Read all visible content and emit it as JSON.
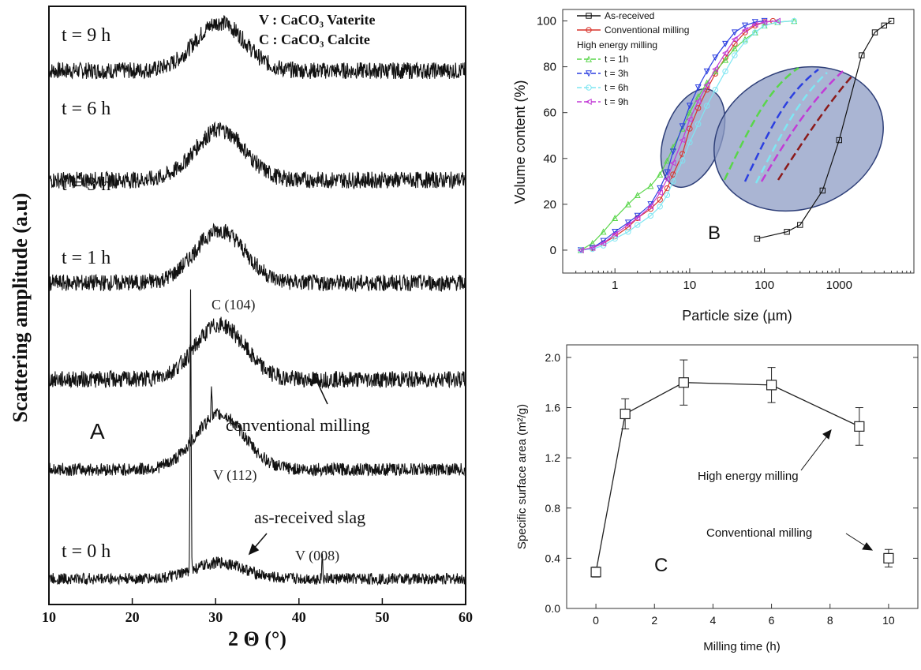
{
  "colors": {
    "xrd_trace": "#111111",
    "ellipse_fill": "#8e9cc4",
    "ellipse_stroke": "#2e3f78",
    "as_received": "#111111",
    "conventional": "#d9342b",
    "t1": "#59d64a",
    "t3": "#2b3fe0",
    "t6": "#7fe6f2",
    "t9": "#c23bd6",
    "panelC": "#222222"
  },
  "chart_data": [
    {
      "type": "line",
      "panel_label": "A",
      "xlabel": "2 Θ (°)",
      "ylabel": "Scattering amplitude (a.u)",
      "xlim": [
        10,
        60
      ],
      "x_ticks": [
        "10",
        "20",
        "30",
        "40",
        "50",
        "60"
      ],
      "y_ticks": [],
      "series": [
        {
          "name": "t = 9 h",
          "baseline": 7.9,
          "hump_center": 30.5,
          "hump_height": 0.75,
          "noise": 0.13,
          "peaks": []
        },
        {
          "name": "t = 6 h",
          "baseline": 6.2,
          "hump_center": 30.5,
          "hump_height": 0.78,
          "noise": 0.13,
          "peaks": []
        },
        {
          "name": "t = 3 h",
          "baseline": 4.6,
          "hump_center": 30.5,
          "hump_height": 0.82,
          "noise": 0.13,
          "peaks": []
        },
        {
          "name": "t = 1 h",
          "baseline": 3.1,
          "hump_center": 30.5,
          "hump_height": 0.85,
          "noise": 0.13,
          "peaks": []
        },
        {
          "name": "",
          "baseline": 1.7,
          "hump_center": 30.5,
          "hump_height": 0.85,
          "noise": 0.1,
          "peaks": [
            {
              "x": 29.5,
              "h": 0.5
            }
          ]
        },
        {
          "name": "t = 0 h",
          "baseline": 0.0,
          "hump_center": 30.5,
          "hump_height": 0.25,
          "noise": 0.09,
          "peaks": [
            {
              "x": 27.0,
              "h": 4.3
            },
            {
              "x": 42.8,
              "h": 0.35
            }
          ]
        }
      ],
      "ylim": [
        -0.4,
        8.9
      ],
      "annotations": {
        "legend_v": "V : CaCO₃ Vaterite",
        "legend_c": "C : CaCO₃ Calcite",
        "c104": "C (104)",
        "v112": "V (112)",
        "v008": "V (008)",
        "conventional": "conventional milling",
        "as_received": "as-received slag"
      }
    },
    {
      "type": "line",
      "panel_label": "B",
      "xlabel": "Particle size (µm)",
      "ylabel": "Volume content (%)",
      "x_scale": "log",
      "xlim": [
        0.2,
        10000
      ],
      "ylim": [
        -10,
        105
      ],
      "x_ticks": [
        "1",
        "10",
        "100",
        "1000"
      ],
      "y_ticks": [
        "0",
        "20",
        "40",
        "60",
        "80",
        "100"
      ],
      "legend_header": "High energy milling",
      "series": [
        {
          "name": "As-received",
          "color_key": "as_received",
          "marker": "square",
          "x": [
            80,
            200,
            300,
            600,
            1000,
            2000,
            3000,
            4000,
            5000
          ],
          "y": [
            5,
            8,
            11,
            26,
            48,
            85,
            95,
            98,
            100
          ]
        },
        {
          "name": "Conventional milling",
          "color_key": "conventional",
          "marker": "circle",
          "x": [
            0.35,
            0.5,
            0.7,
            1,
            1.5,
            2,
            3,
            4,
            5,
            6,
            8,
            10,
            13,
            17,
            22,
            30,
            40,
            55,
            75,
            100,
            130
          ],
          "y": [
            0,
            1,
            3,
            6,
            10,
            14,
            18,
            22,
            27,
            33,
            42,
            53,
            62,
            70,
            77,
            84,
            90,
            95,
            98,
            99.5,
            100
          ]
        },
        {
          "name": "t = 1h",
          "color_key": "t1",
          "marker": "triangle-up",
          "x": [
            0.35,
            0.5,
            0.7,
            1,
            1.5,
            2,
            3,
            4,
            5,
            6,
            8,
            10,
            13,
            17,
            22,
            30,
            40,
            55,
            75,
            100,
            150,
            250
          ],
          "y": [
            0,
            3,
            8,
            14,
            20,
            24,
            28,
            33,
            39,
            45,
            53,
            60,
            67,
            73,
            78,
            83,
            88,
            92,
            95,
            98,
            99.5,
            100
          ]
        },
        {
          "name": "t = 3h",
          "color_key": "t3",
          "marker": "triangle-down",
          "x": [
            0.35,
            0.5,
            0.7,
            1,
            1.5,
            2,
            3,
            4,
            5,
            6,
            8,
            10,
            13,
            17,
            22,
            30,
            40,
            55,
            75,
            100
          ],
          "y": [
            0,
            1,
            4,
            8,
            12,
            15,
            20,
            27,
            34,
            43,
            54,
            63,
            71,
            78,
            84,
            90,
            95,
            98,
            99.5,
            100
          ]
        },
        {
          "name": "t = 6h",
          "color_key": "t6",
          "marker": "circle",
          "x": [
            0.35,
            0.5,
            0.7,
            1,
            1.5,
            2,
            3,
            4,
            5,
            6,
            8,
            10,
            13,
            17,
            22,
            30,
            40,
            55,
            75,
            100,
            150,
            250
          ],
          "y": [
            0,
            0.5,
            2,
            5,
            8,
            11,
            15,
            19,
            24,
            30,
            39,
            47,
            55,
            63,
            70,
            78,
            85,
            91,
            95,
            98,
            99.5,
            100
          ]
        },
        {
          "name": "t = 9h",
          "color_key": "t9",
          "marker": "triangle-left",
          "x": [
            0.35,
            0.5,
            0.7,
            1,
            1.5,
            2,
            3,
            4,
            5,
            6,
            8,
            10,
            13,
            17,
            22,
            30,
            40,
            55,
            75,
            100,
            150
          ],
          "y": [
            0,
            1,
            3,
            7,
            11,
            14,
            19,
            25,
            31,
            38,
            48,
            57,
            65,
            72,
            79,
            86,
            92,
            96,
            98.5,
            99.5,
            100
          ]
        }
      ]
    },
    {
      "type": "line",
      "panel_label": "C",
      "xlabel": "Milling time (h)",
      "ylabel": "Specific surface area (m²/g)",
      "xlim": [
        -1,
        11
      ],
      "ylim": [
        0,
        2.1
      ],
      "x_ticks": [
        "0",
        "2",
        "4",
        "6",
        "8",
        "10"
      ],
      "y_ticks": [
        "0.0",
        "0.4",
        "0.8",
        "1.2",
        "1.6",
        "2.0"
      ],
      "series": [
        {
          "name": "High energy milling",
          "x": [
            0,
            1,
            3,
            6,
            9
          ],
          "y": [
            0.29,
            1.55,
            1.8,
            1.78,
            1.45
          ],
          "err": [
            0.04,
            0.12,
            0.18,
            0.14,
            0.15
          ]
        },
        {
          "name": "Conventional milling",
          "x": [
            10
          ],
          "y": [
            0.4
          ],
          "err": [
            0.07
          ]
        }
      ]
    }
  ]
}
